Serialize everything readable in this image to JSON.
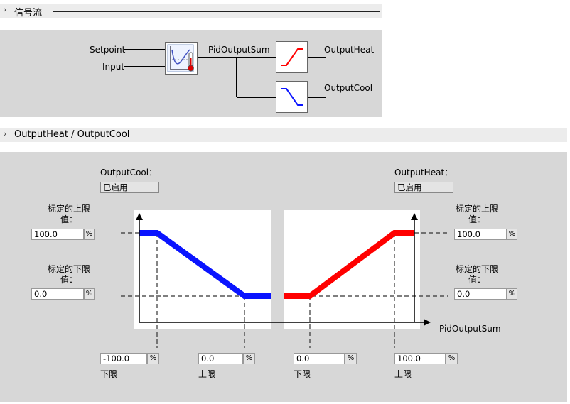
{
  "signal_flow": {
    "title": "信号流",
    "inputs": [
      "Setpoint",
      "Input"
    ],
    "sum_label": "PidOutputSum",
    "outputs": [
      "OutputHeat",
      "OutputCool"
    ]
  },
  "output_section": {
    "title": "OutputHeat / OutputCool",
    "cool_header": "OutputCool：",
    "cool_status": "已启用",
    "heat_header": "OutputHeat：",
    "heat_status": "已启用",
    "left_upper_label": "标定的上限值：",
    "left_upper_value": "100.0",
    "left_lower_label": "标定的下限值：",
    "left_lower_value": "0.0",
    "right_upper_label": "标定的上限值：",
    "right_upper_value": "100.0",
    "right_lower_label": "标定的下限值：",
    "right_lower_value": "0.0",
    "axis_label": "PidOutputSum",
    "cool_low_value": "-100.0",
    "cool_high_value": "0.0",
    "heat_low_value": "0.0",
    "heat_high_value": "100.0",
    "low_label": "下限",
    "high_label": "上限",
    "unit": "%"
  },
  "colors": {
    "cool": "#0a14ff",
    "heat": "#ff0000"
  }
}
